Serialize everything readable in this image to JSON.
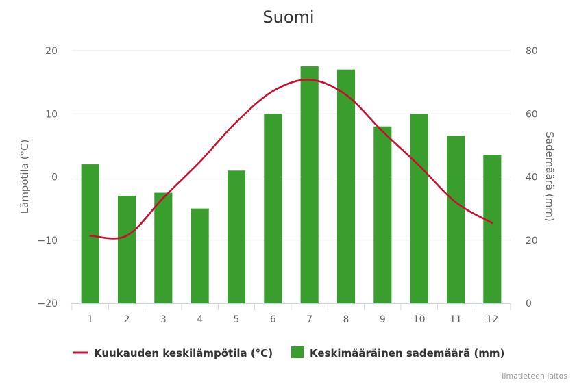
{
  "chart_data": {
    "type": "bar",
    "title": "Suomi",
    "categories": [
      "1",
      "2",
      "3",
      "4",
      "5",
      "6",
      "7",
      "8",
      "9",
      "10",
      "11",
      "12"
    ],
    "series": [
      {
        "name": "Keskimääräinen sademäärä (mm)",
        "type": "bar",
        "axis": "right",
        "color": "#3a9e2f",
        "values": [
          44,
          34,
          35,
          30,
          42,
          60,
          75,
          74,
          56,
          60,
          53,
          47
        ]
      },
      {
        "name": "Kuukauden keskilämpötila (°C)",
        "type": "line",
        "axis": "left",
        "color": "#c8102e",
        "values": [
          -9.3,
          -9.3,
          -3.3,
          2.4,
          8.7,
          13.6,
          15.4,
          13.0,
          7.2,
          1.8,
          -4.0,
          -7.3
        ]
      }
    ],
    "y_left": {
      "label": "Lämpötila (°C)",
      "ylim": [
        -20,
        20
      ],
      "ticks": [
        "20",
        "10",
        "0",
        "−10",
        "−20"
      ]
    },
    "y_right": {
      "label": "Sademäärä (mm)",
      "ylim": [
        0,
        80
      ],
      "ticks": [
        "80",
        "60",
        "40",
        "20",
        "0"
      ]
    },
    "grid": true,
    "legend_position": "bottom-center",
    "credit": "Ilmatieteen laitos"
  }
}
